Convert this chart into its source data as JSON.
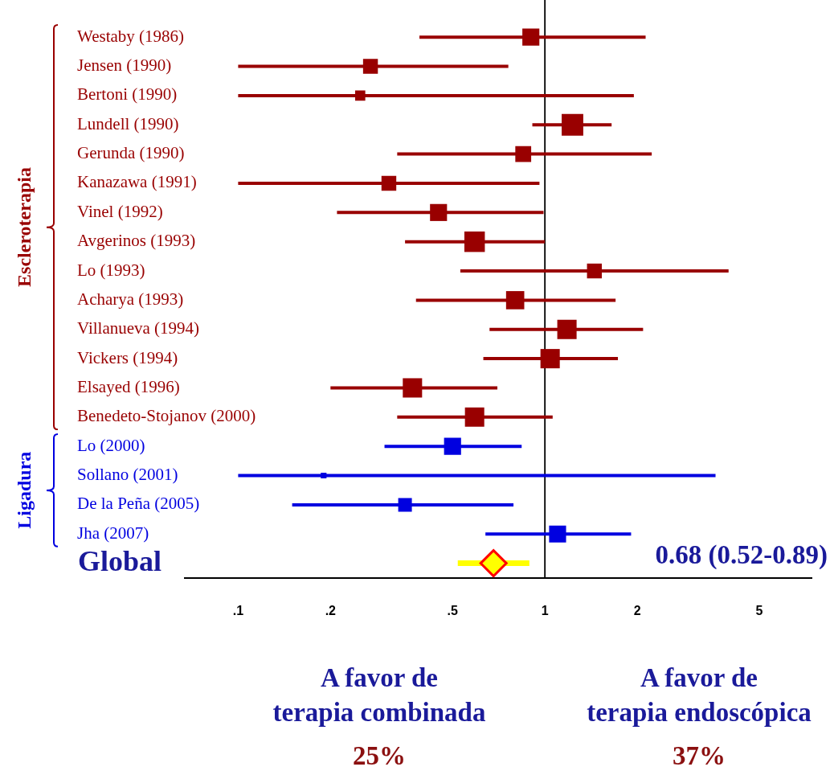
{
  "chart_data": {
    "type": "bubble",
    "orientation": "horizontal",
    "marker": "square",
    "log": "x",
    "legend": false,
    "grid": false,
    "categories": [
      "Westaby (1986)",
      "Jensen (1990)",
      "Bertoni (1990)",
      "Lundell (1990)",
      "Gerunda (1990)",
      "Kanazawa (1991)",
      "Vinel (1992)",
      "Avgerinos (1993)",
      "Lo (1993)",
      "Acharya (1993)",
      "Villanueva (1994)",
      "Vickers (1994)",
      "Elsayed (1996)",
      "Benedeto-Stojanov (2000)",
      "Lo (2000)",
      "Sollano (2001)",
      "De la Peña (2005)",
      "Jha (2007)",
      "Global"
    ],
    "xlim": [
      0.067,
      7.4
    ],
    "xticks": [
      {
        "value": 0.1,
        "label": ".1"
      },
      {
        "value": 0.2,
        "label": ".2"
      },
      {
        "value": 0.5,
        "label": ".5"
      },
      1,
      2,
      5
    ],
    "ref_lines": [
      {
        "axis": "x",
        "value": 1,
        "color": "#000000"
      }
    ],
    "annotations": [
      "0.68 (0.52-0.89)",
      "A favor de",
      "terapia combinada",
      "25%",
      "A favor de",
      "terapia endoscópica",
      "37%"
    ],
    "series": [
      {
        "name": "Escleroterapia",
        "color": "#990000",
        "values": [
          0.9,
          0.27,
          0.25,
          1.23,
          0.85,
          0.31,
          0.45,
          0.59,
          1.45,
          0.8,
          1.18,
          1.04,
          0.37,
          0.59,
          null,
          null,
          null,
          null,
          null
        ],
        "errors": [
          [
            0.39,
            2.13
          ],
          [
            0.1,
            0.76
          ],
          [
            0.1,
            1.95
          ],
          [
            0.91,
            1.65
          ],
          [
            0.33,
            2.23
          ],
          [
            0.1,
            0.96
          ],
          [
            0.21,
            0.99
          ],
          [
            0.35,
            1.0
          ],
          [
            0.53,
            3.97
          ],
          [
            0.38,
            1.7
          ],
          [
            0.66,
            2.09
          ],
          [
            0.63,
            1.73
          ],
          [
            0.2,
            0.7
          ],
          [
            0.33,
            1.06
          ],
          null,
          null,
          null,
          null,
          null
        ],
        "sizes": [
          0.62,
          0.47,
          0.22,
          1,
          0.54,
          0.47,
          0.62,
          0.9,
          0.47,
          0.71,
          0.8,
          0.8,
          0.8,
          0.8,
          null,
          null,
          null,
          null,
          null
        ]
      },
      {
        "name": "Ligadura",
        "color": "#0000e0",
        "values": [
          null,
          null,
          null,
          null,
          null,
          null,
          null,
          null,
          null,
          null,
          null,
          null,
          null,
          null,
          0.5,
          0.19,
          0.35,
          1.1,
          null
        ],
        "errors": [
          null,
          null,
          null,
          null,
          null,
          null,
          null,
          null,
          null,
          null,
          null,
          null,
          null,
          null,
          [
            0.3,
            0.84
          ],
          [
            0.1,
            3.6
          ],
          [
            0.15,
            0.79
          ],
          [
            0.64,
            1.91
          ],
          null
        ],
        "sizes": [
          null,
          null,
          null,
          null,
          null,
          null,
          null,
          null,
          null,
          null,
          null,
          null,
          null,
          null,
          0.62,
          0.07,
          0.4,
          0.62,
          null
        ]
      },
      {
        "type": "scatter",
        "marker": "diamond",
        "color": "#ffff00",
        "values": [
          null,
          null,
          null,
          null,
          null,
          null,
          null,
          null,
          null,
          null,
          null,
          null,
          null,
          null,
          null,
          null,
          null,
          null,
          0.68
        ],
        "errors": [
          null,
          null,
          null,
          null,
          null,
          null,
          null,
          null,
          null,
          null,
          null,
          null,
          null,
          null,
          null,
          null,
          null,
          null,
          [
            0.52,
            0.89
          ]
        ]
      }
    ]
  }
}
